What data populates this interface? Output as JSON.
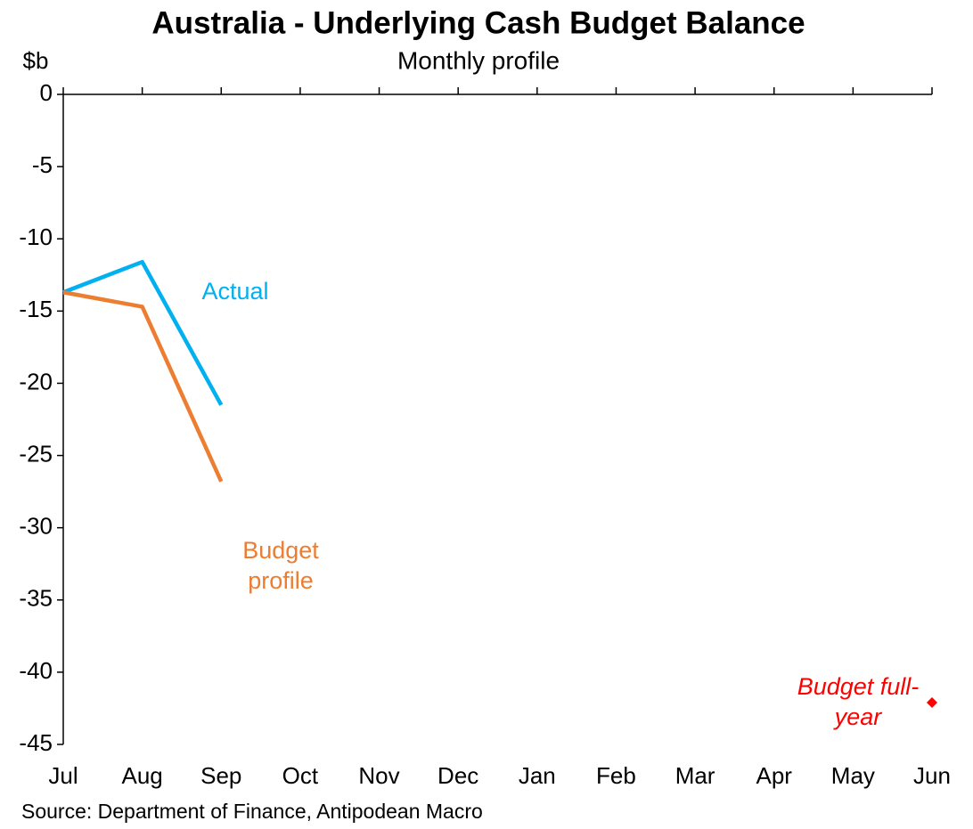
{
  "chart_data": {
    "type": "line",
    "title": "Australia - Underlying Cash Budget Balance",
    "subtitle": "Monthly profile",
    "y_label": "$b",
    "source": "Source: Department of Finance, Antipodean Macro",
    "categories": [
      "Jul",
      "Aug",
      "Sep",
      "Oct",
      "Nov",
      "Dec",
      "Jan",
      "Feb",
      "Mar",
      "Apr",
      "May",
      "Jun"
    ],
    "series": [
      {
        "name": "Actual",
        "color": "#00b0f0",
        "values": [
          -13.7,
          -11.6,
          -21.5,
          null,
          null,
          null,
          null,
          null,
          null,
          null,
          null,
          null
        ]
      },
      {
        "name": "Budget profile",
        "color": "#ed7d31",
        "values": [
          -13.7,
          -14.7,
          -26.8,
          null,
          null,
          null,
          null,
          null,
          null,
          null,
          null,
          null
        ]
      },
      {
        "name": "Budget full-year",
        "color": "#ff0000",
        "marker": "diamond",
        "values": [
          null,
          null,
          null,
          null,
          null,
          null,
          null,
          null,
          null,
          null,
          null,
          -42.1
        ]
      }
    ],
    "ylim": [
      -45,
      0
    ],
    "yticks": [
      0,
      -5,
      -10,
      -15,
      -20,
      -25,
      -30,
      -35,
      -40,
      -45
    ],
    "grid": false
  }
}
